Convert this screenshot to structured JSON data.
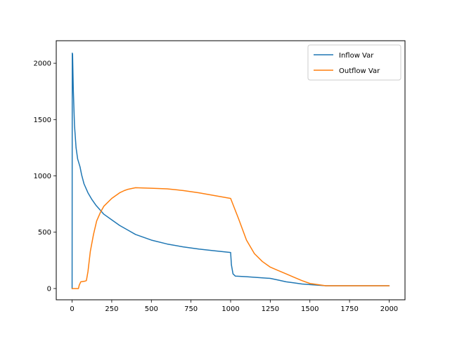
{
  "chart_data": {
    "type": "line",
    "title": "",
    "xlabel": "",
    "ylabel": "",
    "xlim": [
      -100,
      2100
    ],
    "ylim": [
      -100,
      2200
    ],
    "x_ticks": [
      0,
      250,
      500,
      750,
      1000,
      1250,
      1500,
      1750,
      2000
    ],
    "x_tick_labels": [
      "0",
      "250",
      "500",
      "750",
      "1000",
      "1250",
      "1500",
      "1750",
      "2000"
    ],
    "y_ticks": [
      0,
      500,
      1000,
      1500,
      2000
    ],
    "y_tick_labels": [
      "0",
      "500",
      "1000",
      "1500",
      "2000"
    ],
    "grid": false,
    "legend_position": "top-right",
    "series": [
      {
        "name": "Inflow Var",
        "color": "#1f77b4",
        "points": [
          [
            0,
            0
          ],
          [
            1,
            2090
          ],
          [
            3,
            2080
          ],
          [
            8,
            1750
          ],
          [
            15,
            1450
          ],
          [
            25,
            1250
          ],
          [
            35,
            1150
          ],
          [
            50,
            1080
          ],
          [
            60,
            1010
          ],
          [
            75,
            930
          ],
          [
            100,
            850
          ],
          [
            125,
            790
          ],
          [
            150,
            740
          ],
          [
            175,
            700
          ],
          [
            200,
            660
          ],
          [
            250,
            610
          ],
          [
            300,
            560
          ],
          [
            350,
            520
          ],
          [
            400,
            480
          ],
          [
            450,
            455
          ],
          [
            500,
            430
          ],
          [
            600,
            395
          ],
          [
            700,
            370
          ],
          [
            800,
            350
          ],
          [
            900,
            335
          ],
          [
            1000,
            320
          ],
          [
            1005,
            210
          ],
          [
            1015,
            130
          ],
          [
            1030,
            110
          ],
          [
            1100,
            105
          ],
          [
            1200,
            95
          ],
          [
            1250,
            90
          ],
          [
            1300,
            75
          ],
          [
            1350,
            60
          ],
          [
            1400,
            50
          ],
          [
            1450,
            40
          ],
          [
            1500,
            35
          ],
          [
            1600,
            25
          ],
          [
            1700,
            25
          ],
          [
            1800,
            25
          ],
          [
            1900,
            25
          ],
          [
            2000,
            25
          ]
        ]
      },
      {
        "name": "Outflow Var",
        "color": "#ff7f0e",
        "points": [
          [
            0,
            0
          ],
          [
            40,
            0
          ],
          [
            45,
            30
          ],
          [
            55,
            60
          ],
          [
            80,
            65
          ],
          [
            90,
            70
          ],
          [
            100,
            150
          ],
          [
            115,
            330
          ],
          [
            135,
            480
          ],
          [
            155,
            600
          ],
          [
            180,
            680
          ],
          [
            200,
            730
          ],
          [
            250,
            800
          ],
          [
            300,
            850
          ],
          [
            330,
            870
          ],
          [
            350,
            880
          ],
          [
            400,
            895
          ],
          [
            500,
            890
          ],
          [
            600,
            885
          ],
          [
            700,
            870
          ],
          [
            800,
            850
          ],
          [
            900,
            825
          ],
          [
            1000,
            800
          ],
          [
            1050,
            620
          ],
          [
            1100,
            430
          ],
          [
            1150,
            310
          ],
          [
            1200,
            240
          ],
          [
            1250,
            190
          ],
          [
            1300,
            160
          ],
          [
            1350,
            130
          ],
          [
            1400,
            100
          ],
          [
            1450,
            70
          ],
          [
            1500,
            45
          ],
          [
            1550,
            35
          ],
          [
            1600,
            25
          ],
          [
            1700,
            25
          ],
          [
            1800,
            25
          ],
          [
            1900,
            25
          ],
          [
            2000,
            25
          ]
        ]
      }
    ]
  }
}
